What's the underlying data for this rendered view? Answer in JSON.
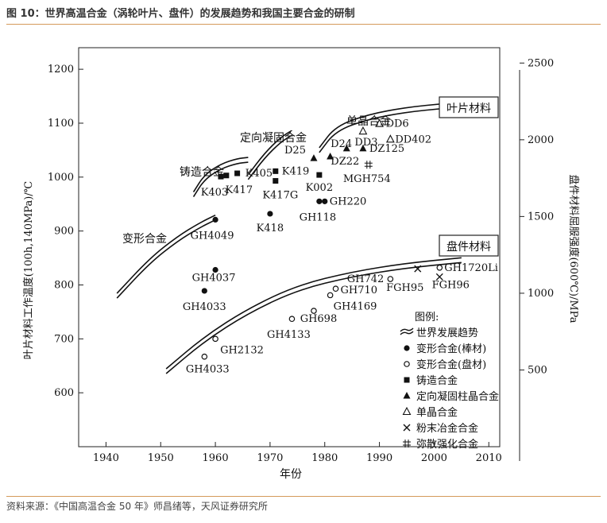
{
  "header": {
    "title": "图 10：世界高温合金（涡轮叶片、盘件）的发展趋势和我国主要合金的研制"
  },
  "footer": {
    "source": "资料来源：《中国高温合金 50 年》师昌绪等，天风证券研究所"
  },
  "chart_data": {
    "type": "scatter",
    "xlabel": "年份",
    "ylabel_left": "叶片材料工作温度(100h,140MPa)/℃",
    "ylabel_right": "盘件材料屈服强度(600℃)/MPa",
    "xlim": [
      1935,
      2012
    ],
    "ylim_left": [
      500,
      1240
    ],
    "ylim_right": [
      0,
      2600
    ],
    "x_ticks": [
      1940,
      1950,
      1960,
      1970,
      1980,
      1990,
      2000,
      2010
    ],
    "y_left_ticks": [
      600,
      700,
      800,
      900,
      1000,
      1100,
      1200
    ],
    "y_right_ticks": [
      500,
      1000,
      1500,
      2000,
      2500
    ],
    "box_labels": {
      "blade": "叶片材料",
      "disc": "盘件材料"
    },
    "curve_labels": {
      "wrought": "变形合金",
      "cast": "铸造合金",
      "ds": "定向凝固合金",
      "sx": "单晶合金"
    },
    "trend_curves": [
      {
        "id": "wrought",
        "points": [
          [
            1942,
            780
          ],
          [
            1948,
            845
          ],
          [
            1953,
            885
          ],
          [
            1957,
            910
          ],
          [
            1960,
            925
          ]
        ]
      },
      {
        "id": "cast",
        "points": [
          [
            1956,
            968
          ],
          [
            1958,
            1000
          ],
          [
            1961,
            1020
          ],
          [
            1964,
            1030
          ],
          [
            1966,
            1032
          ]
        ]
      },
      {
        "id": "ds",
        "points": [
          [
            1966,
            1000
          ],
          [
            1969,
            1040
          ],
          [
            1972,
            1070
          ],
          [
            1974,
            1082
          ]
        ]
      },
      {
        "id": "sx",
        "points": [
          [
            1979,
            1050
          ],
          [
            1982,
            1090
          ],
          [
            1988,
            1112
          ],
          [
            1995,
            1125
          ],
          [
            2002,
            1132
          ],
          [
            2006,
            1136
          ]
        ]
      },
      {
        "id": "disc",
        "points": [
          [
            1951,
            640
          ],
          [
            1958,
            700
          ],
          [
            1966,
            752
          ],
          [
            1975,
            795
          ],
          [
            1985,
            820
          ],
          [
            1995,
            836
          ],
          [
            2005,
            846
          ]
        ]
      }
    ],
    "legend": {
      "title": "图例:",
      "items": [
        {
          "marker": "trend",
          "label": "世界发展趋势"
        },
        {
          "marker": "filled-circle",
          "label": "变形合金(棒材)"
        },
        {
          "marker": "open-circle",
          "label": "变形合金(盘材)"
        },
        {
          "marker": "filled-square",
          "label": "铸造合金"
        },
        {
          "marker": "filled-triangle",
          "label": "定向凝固柱晶合金"
        },
        {
          "marker": "open-triangle",
          "label": "单晶合金"
        },
        {
          "marker": "cross",
          "label": "粉末冶金合金"
        },
        {
          "marker": "hash",
          "label": "弥散强化合金"
        }
      ]
    },
    "points": [
      {
        "name": "GH4049",
        "x": 1960,
        "y": 921,
        "marker": "filled-circle",
        "lx": -4,
        "ly": 24,
        "anchor": "middle"
      },
      {
        "name": "GH4037",
        "x": 1960,
        "y": 828,
        "marker": "filled-circle",
        "lx": -2,
        "ly": 14,
        "anchor": "middle"
      },
      {
        "name": "GH4033",
        "x": 1958,
        "y": 789,
        "marker": "filled-circle",
        "lx": 0,
        "ly": 24,
        "anchor": "middle"
      },
      {
        "name": "K418",
        "x": 1970,
        "y": 932,
        "marker": "filled-circle",
        "lx": 0,
        "ly": 22,
        "anchor": "middle"
      },
      {
        "name": "GH118",
        "x": 1979,
        "y": 955,
        "marker": "filled-circle",
        "lx": -2,
        "ly": 24,
        "anchor": "middle"
      },
      {
        "name": "GH220",
        "x": 1980,
        "y": 955,
        "marker": "filled-circle",
        "lx": 6,
        "ly": 4,
        "anchor": "start"
      },
      {
        "name": "K403",
        "x": 1961,
        "y": 1001,
        "marker": "filled-square",
        "lx": -8,
        "ly": 24,
        "anchor": "middle"
      },
      {
        "name": "K417",
        "x": 1962,
        "y": 1003,
        "marker": "filled-square",
        "lx": 16,
        "ly": 22,
        "anchor": "middle"
      },
      {
        "name": "K405",
        "x": 1964,
        "y": 1007,
        "marker": "filled-square",
        "lx": 10,
        "ly": 4,
        "anchor": "start"
      },
      {
        "name": "K419",
        "x": 1971,
        "y": 1011,
        "marker": "filled-square",
        "lx": 8,
        "ly": 4,
        "anchor": "start"
      },
      {
        "name": "K417G",
        "x": 1971,
        "y": 993,
        "marker": "filled-square",
        "lx": 6,
        "ly": 22,
        "anchor": "middle"
      },
      {
        "name": "K002",
        "x": 1979,
        "y": 1004,
        "marker": "filled-square",
        "lx": 0,
        "ly": 20,
        "anchor": "middle"
      },
      {
        "name": "D25",
        "x": 1978,
        "y": 1035,
        "marker": "filled-triangle",
        "lx": -10,
        "ly": -6,
        "anchor": "end"
      },
      {
        "name": "D24",
        "x": 1981,
        "y": 1038,
        "marker": "filled-triangle",
        "lx": 14,
        "ly": -12,
        "anchor": "middle"
      },
      {
        "name": "DZ22",
        "x": 1984,
        "y": 1053,
        "marker": "filled-triangle",
        "lx": -2,
        "ly": 20,
        "anchor": "middle"
      },
      {
        "name": "DZ125",
        "x": 1987,
        "y": 1053,
        "marker": "filled-triangle",
        "lx": 8,
        "ly": 4,
        "anchor": "start"
      },
      {
        "name": "DD6",
        "x": 1990,
        "y": 1099,
        "marker": "open-triangle",
        "lx": 8,
        "ly": 4,
        "anchor": "start"
      },
      {
        "name": "DD3",
        "x": 1987,
        "y": 1085,
        "marker": "open-triangle",
        "lx": 4,
        "ly": 18,
        "anchor": "middle"
      },
      {
        "name": "DD402",
        "x": 1992,
        "y": 1070,
        "marker": "open-triangle",
        "lx": 6,
        "ly": 4,
        "anchor": "start"
      },
      {
        "name": "MGH754",
        "x": 1988,
        "y": 1023,
        "marker": "hash",
        "lx": -2,
        "ly": 22,
        "anchor": "middle"
      },
      {
        "name": "GH2132",
        "x": 1960,
        "y": 700,
        "marker": "open-circle",
        "lx": 6,
        "ly": 18,
        "anchor": "start"
      },
      {
        "name": "GH4033",
        "x": 1958,
        "y": 667,
        "marker": "open-circle",
        "lx": 4,
        "ly": 20,
        "anchor": "middle"
      },
      {
        "name": "GH4133",
        "x": 1974,
        "y": 737,
        "marker": "open-circle",
        "lx": -4,
        "ly": 24,
        "anchor": "middle"
      },
      {
        "name": "GH698",
        "x": 1978,
        "y": 752,
        "marker": "open-circle",
        "lx": 6,
        "ly": 14,
        "anchor": "middle"
      },
      {
        "name": "GH4169",
        "x": 1981,
        "y": 781,
        "marker": "open-circle",
        "lx": 4,
        "ly": 18,
        "anchor": "start"
      },
      {
        "name": "GH710",
        "x": 1982,
        "y": 793,
        "marker": "open-circle",
        "lx": 6,
        "ly": 6,
        "anchor": "start"
      },
      {
        "name": "GH742",
        "x": 1992,
        "y": 811,
        "marker": "open-circle",
        "lx": -8,
        "ly": 4,
        "anchor": "end"
      },
      {
        "name": "GH1720Li",
        "x": 2001,
        "y": 832,
        "marker": "open-circle",
        "lx": 6,
        "ly": 4,
        "anchor": "start"
      },
      {
        "name": "FGH95",
        "x": 1997,
        "y": 830,
        "marker": "cross",
        "lx": -16,
        "ly": 28,
        "anchor": "middle"
      },
      {
        "name": "FGH96",
        "x": 2001,
        "y": 815,
        "marker": "cross",
        "lx": 14,
        "ly": 14,
        "anchor": "middle"
      }
    ]
  }
}
